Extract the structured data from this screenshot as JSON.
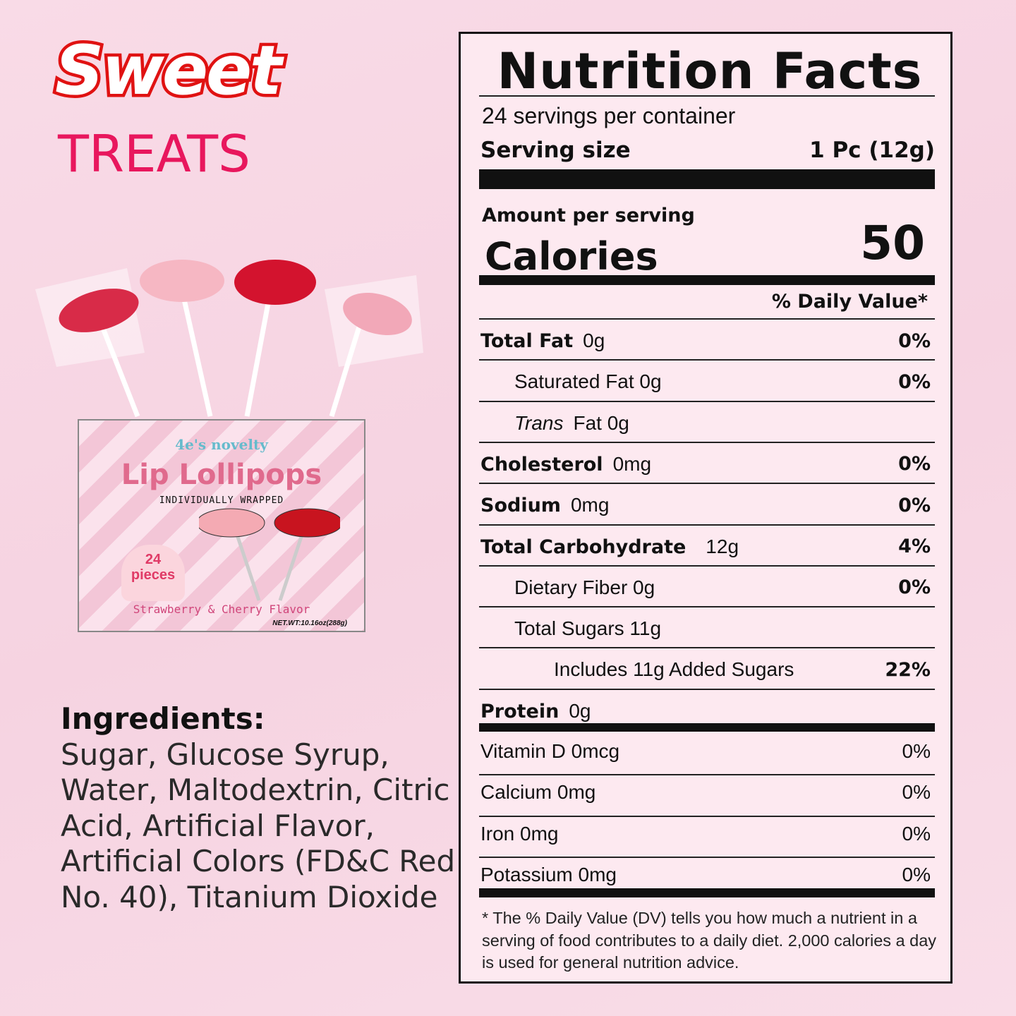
{
  "brand": {
    "headline": "Sweet",
    "subheadline": "TREATS"
  },
  "product_box": {
    "brand": "4e's novelty",
    "name": "Lip Lollipops",
    "tagline": "INDIVIDUALLY WRAPPED",
    "count": "24",
    "count_unit": "pieces",
    "flavor": "Strawberry & Cherry Flavor",
    "net_weight": "NET.WT:10.16oz(288g)"
  },
  "ingredients": {
    "title": "Ingredients:",
    "text": "Sugar, Glucose Syrup, Water, Maltodextrin, Citric Acid, Artificial Flavor, Artificial Colors (FD&C Red No. 40), Titanium Dioxide"
  },
  "nutrition": {
    "title": "Nutrition Facts",
    "servings": "24 servings per container",
    "serving_size_label": "Serving size",
    "serving_size": "1 Pc (12g)",
    "amount_per_serving": "Amount per serving",
    "calories_label": "Calories",
    "calories": "50",
    "dv_header": "% Daily Value*",
    "rows": [
      {
        "label": "Total Fat",
        "amount": "0g",
        "dv": "0%"
      },
      {
        "label": "Saturated Fat 0g",
        "amount": "",
        "dv": "0%"
      },
      {
        "label": "Trans",
        "amount": "Fat 0g",
        "dv": ""
      },
      {
        "label": "Cholesterol",
        "amount": "0mg",
        "dv": "0%"
      },
      {
        "label": "Sodium",
        "amount": "0mg",
        "dv": "0%"
      },
      {
        "label": "Total Carbohydrate",
        "amount": "12g",
        "dv": "4%"
      },
      {
        "label": "Dietary Fiber 0g",
        "amount": "",
        "dv": "0%"
      },
      {
        "label": "Total Sugars 11g",
        "amount": "",
        "dv": ""
      },
      {
        "label": "Includes 11g Added Sugars",
        "amount": "",
        "dv": "22%"
      },
      {
        "label": "Protein",
        "amount": "0g",
        "dv": ""
      }
    ],
    "vitamins": [
      {
        "label": "Vitamin D 0mcg",
        "dv": "0%"
      },
      {
        "label": "Calcium 0mg",
        "dv": "0%"
      },
      {
        "label": "Iron 0mg",
        "dv": "0%"
      },
      {
        "label": "Potassium 0mg",
        "dv": "0%"
      }
    ],
    "footnote": "* The % Daily Value (DV) tells you how much a nutrient in a serving of food contributes to a daily diet. 2,000 calories a day is used for general nutrition advice."
  }
}
